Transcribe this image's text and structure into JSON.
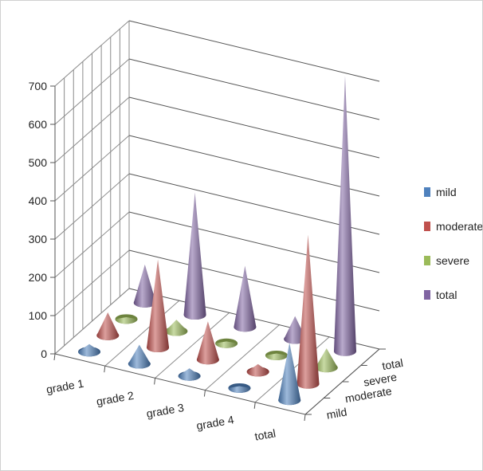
{
  "chart_data": {
    "type": "3d-cone",
    "title": "",
    "categories": [
      "grade 1",
      "grade 2",
      "grade 3",
      "grade 4",
      "total"
    ],
    "series": [
      {
        "name": "mild",
        "color": "#4F81BD",
        "values": [
          20,
          50,
          20,
          5,
          150
        ]
      },
      {
        "name": "moderate",
        "color": "#C0504D",
        "values": [
          60,
          230,
          100,
          20,
          390
        ]
      },
      {
        "name": "severe",
        "color": "#9BBB59",
        "values": [
          5,
          30,
          5,
          5,
          50
        ]
      },
      {
        "name": "total",
        "color": "#8064A2",
        "values": [
          100,
          320,
          160,
          60,
          720
        ]
      }
    ],
    "yticks": [
      "0",
      "100",
      "200",
      "300",
      "400",
      "500",
      "600",
      "700"
    ],
    "ylim": [
      0,
      700
    ],
    "grid": true,
    "legend_position": "right"
  }
}
